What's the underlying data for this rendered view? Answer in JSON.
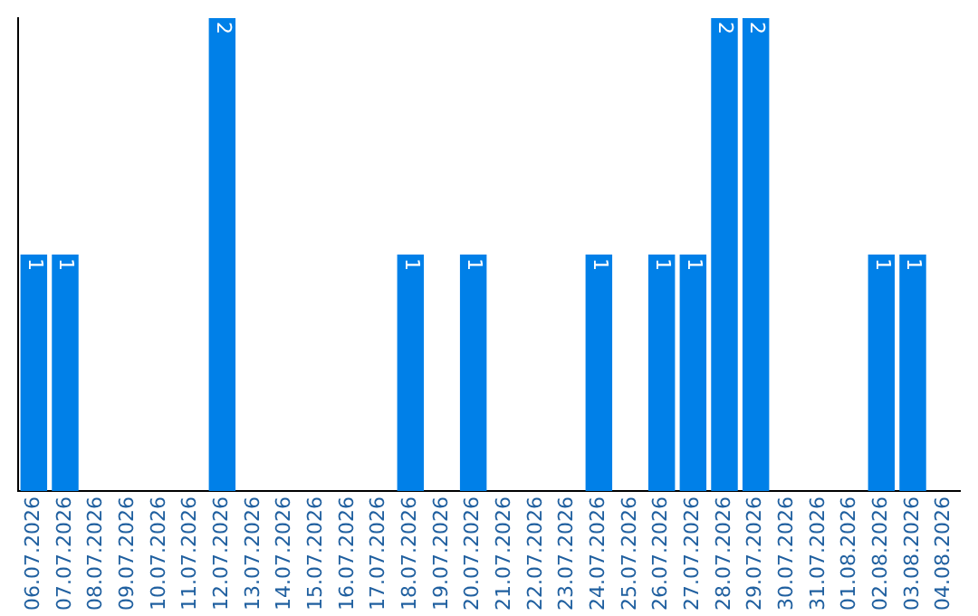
{
  "chart_data": {
    "type": "bar",
    "categories": [
      "06.07.2026",
      "07.07.2026",
      "08.07.2026",
      "09.07.2026",
      "10.07.2026",
      "11.07.2026",
      "12.07.2026",
      "13.07.2026",
      "14.07.2026",
      "15.07.2026",
      "16.07.2026",
      "17.07.2026",
      "18.07.2026",
      "19.07.2026",
      "20.07.2026",
      "21.07.2026",
      "22.07.2026",
      "23.07.2026",
      "24.07.2026",
      "25.07.2026",
      "26.07.2026",
      "27.07.2026",
      "28.07.2026",
      "29.07.2026",
      "30.07.2026",
      "31.07.2026",
      "01.08.2026",
      "02.08.2026",
      "03.08.2026",
      "04.08.2026"
    ],
    "values": [
      1,
      1,
      0,
      0,
      0,
      0,
      2,
      0,
      0,
      0,
      0,
      0,
      1,
      0,
      1,
      0,
      0,
      0,
      1,
      0,
      1,
      1,
      2,
      2,
      0,
      0,
      0,
      1,
      1,
      0
    ],
    "value_labels": [
      "1",
      "1",
      null,
      null,
      null,
      null,
      "2",
      null,
      null,
      null,
      null,
      null,
      "1",
      null,
      "1",
      null,
      null,
      null,
      "1",
      null,
      "1",
      "1",
      "2",
      "2",
      null,
      null,
      null,
      "1",
      "1",
      null
    ],
    "color": "#0080e8",
    "ylim": [
      0,
      2
    ],
    "tick_labels": "x",
    "grid": false,
    "legend": false
  }
}
